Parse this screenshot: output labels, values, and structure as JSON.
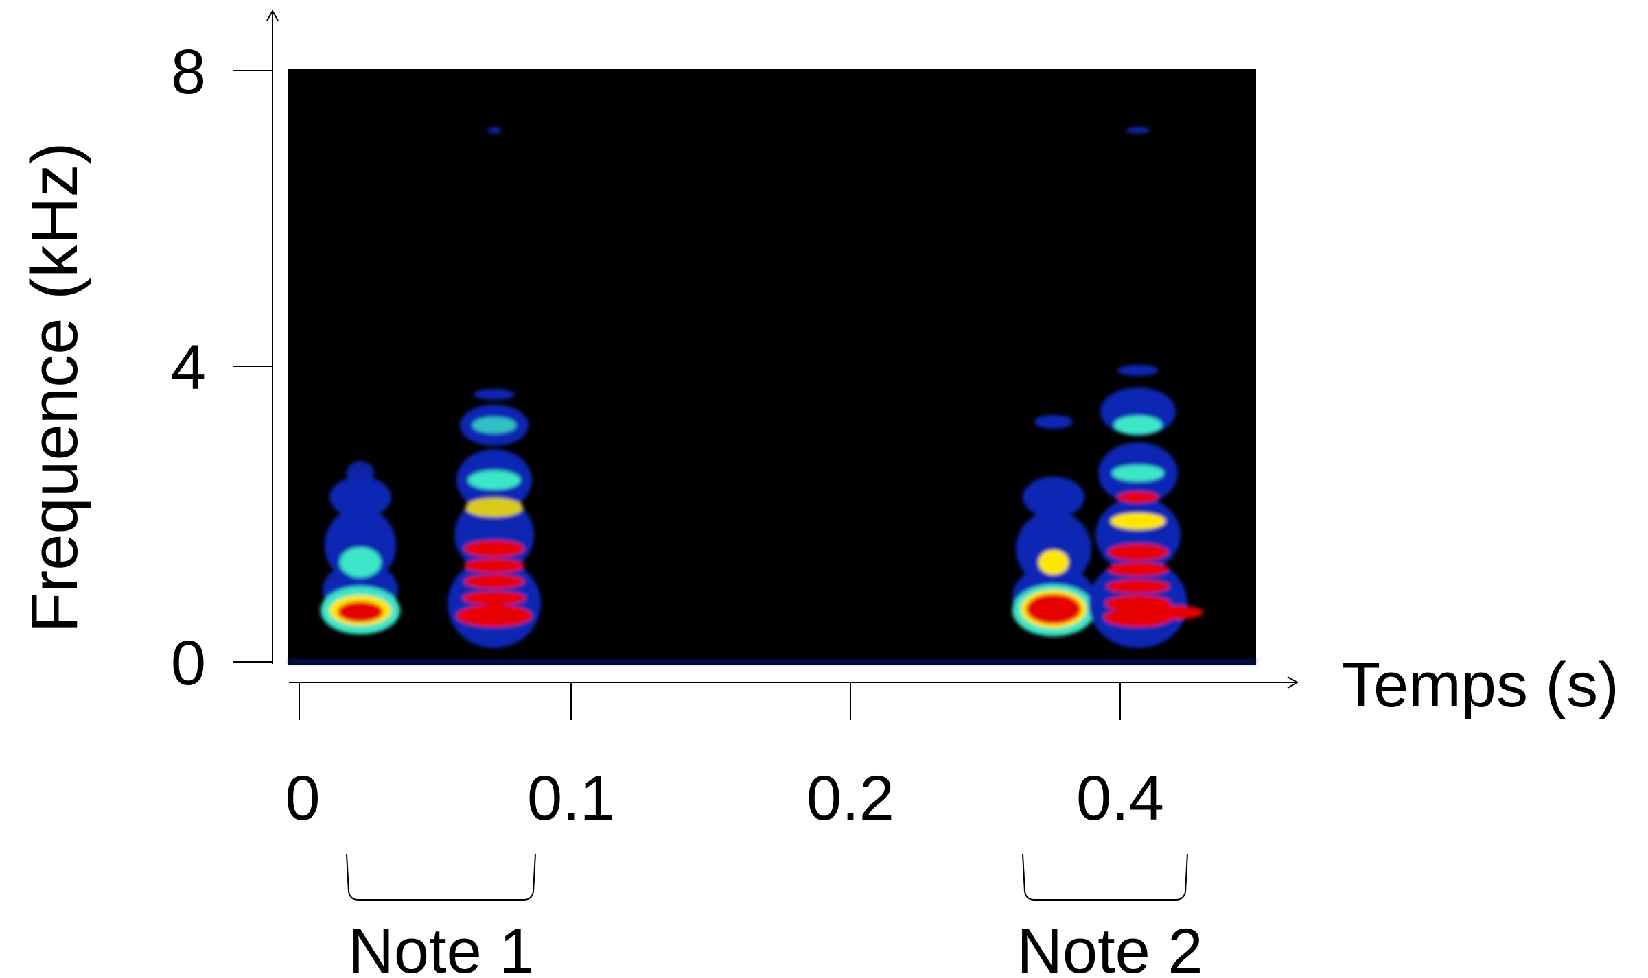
{
  "chart_data": {
    "type": "heatmap",
    "xlabel": "Temps (s)",
    "ylabel": "Frequence (kHz)",
    "x_ticks": [
      {
        "value": 0,
        "label": "0"
      },
      {
        "value": 0.1,
        "label": "0.1"
      },
      {
        "value": 0.2,
        "label": "0.2"
      },
      {
        "value": 0.4,
        "label": "0.4"
      }
    ],
    "y_ticks": [
      {
        "value": 0,
        "label": "0"
      },
      {
        "value": 4,
        "label": "4"
      },
      {
        "value": 8,
        "label": "8"
      }
    ],
    "ylim": [
      0,
      8
    ],
    "grid": false,
    "annotations": [
      {
        "label": "Note 1",
        "x_start": 0.02,
        "x_end": 0.09
      },
      {
        "label": "Note 2",
        "x_start": 0.36,
        "x_end": 0.42
      }
    ],
    "colors": {
      "background": "#000000",
      "low": "#0a28b4",
      "mid": "#3ce6c8",
      "high_mid": "#ffe600",
      "high": "#e60000"
    }
  }
}
